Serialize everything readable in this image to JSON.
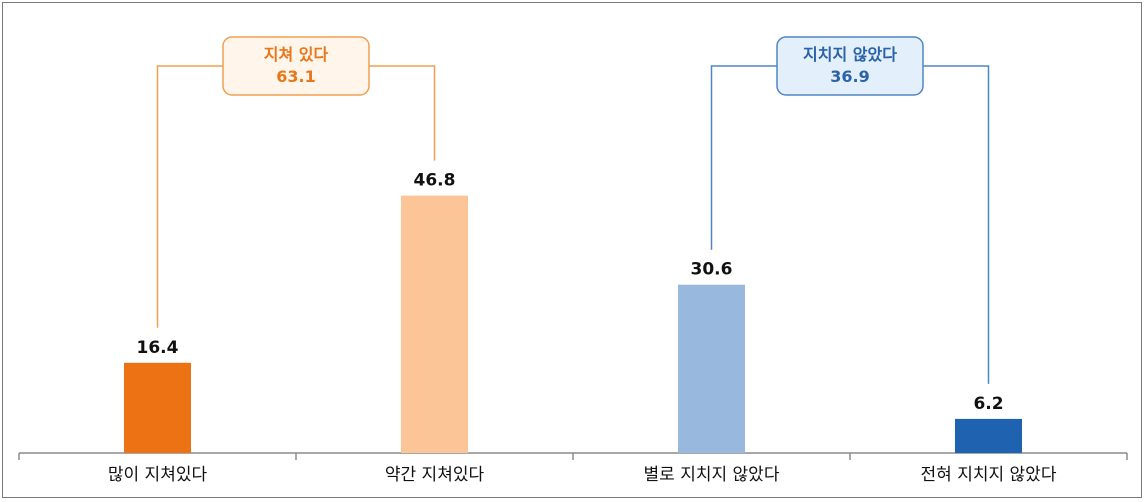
{
  "chart_data": {
    "type": "bar",
    "categories": [
      "많이 지쳐있다",
      "약간 지쳐있다",
      "별로 지치지 않았다",
      "전혀 지치지 않았다"
    ],
    "values": [
      16.4,
      46.8,
      30.6,
      6.2
    ],
    "value_labels": [
      "16.4",
      "46.8",
      "30.6",
      "6.2"
    ],
    "bar_colors": [
      "#ec7213",
      "#fbc597",
      "#98b8de",
      "#1f63b0"
    ],
    "ylim": [
      0,
      60
    ],
    "grid": false,
    "title": "",
    "xlabel": "",
    "ylabel": "",
    "groups": [
      {
        "label": "지쳐 있다",
        "value": "63.1",
        "members": [
          0,
          1
        ],
        "stroke": "#f0a050",
        "fill": "#fff5ea",
        "text_color": "#e8761a"
      },
      {
        "label": "지치지 않았다",
        "value": "36.9",
        "members": [
          2,
          3
        ],
        "stroke": "#4f86c6",
        "fill": "#e3effa",
        "text_color": "#2a63a8"
      }
    ]
  }
}
